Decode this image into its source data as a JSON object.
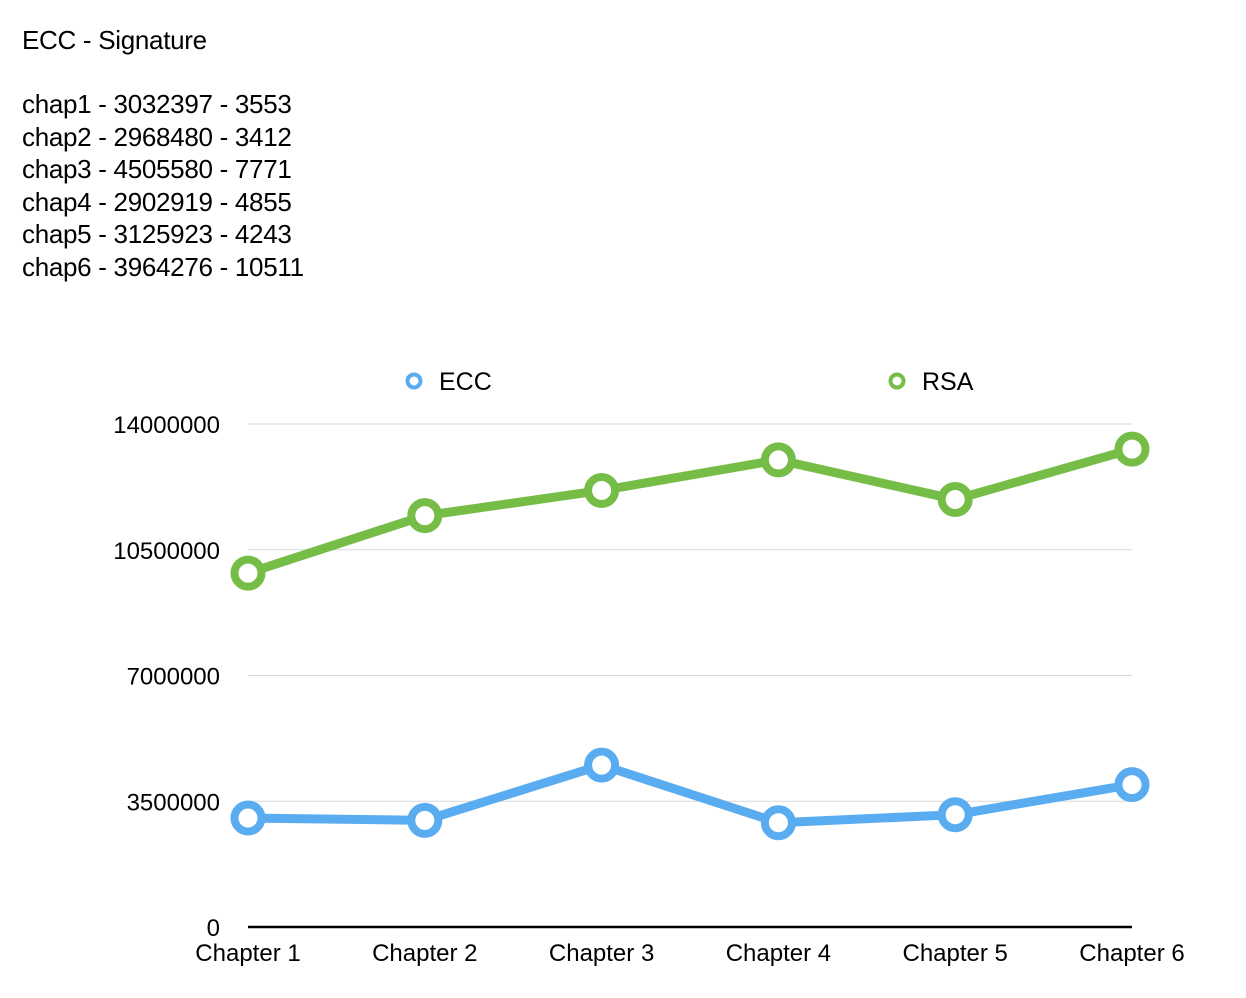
{
  "page": {
    "title": "ECC - Signature",
    "notes": [
      "chap1 - 3032397 - 3553",
      "chap2 - 2968480 - 3412",
      "chap3 - 4505580 - 7771",
      "chap4 - 2902919 - 4855",
      "chap5 - 3125923 - 4243",
      "chap6 - 3964276 - 10511"
    ]
  },
  "chart_data": {
    "type": "line",
    "title": "",
    "xlabel": "",
    "ylabel": "",
    "categories": [
      "Chapter 1",
      "Chapter 2",
      "Chapter 3",
      "Chapter 4",
      "Chapter 5",
      "Chapter 6"
    ],
    "ylim": [
      0,
      14000000
    ],
    "yticks": [
      0,
      3500000,
      7000000,
      10500000,
      14000000
    ],
    "ytick_labels": [
      "0",
      "3500000",
      "7000000",
      "10500000",
      "14000000"
    ],
    "grid": true,
    "legend_position": "top",
    "series": [
      {
        "name": "ECC",
        "color": "#5aacf1",
        "values": [
          3032397,
          2968480,
          4505580,
          2902919,
          3125923,
          3964276
        ]
      },
      {
        "name": "RSA",
        "color": "#76bd47",
        "values": [
          9850000,
          11450000,
          12150000,
          13000000,
          11900000,
          13300000
        ]
      }
    ]
  }
}
